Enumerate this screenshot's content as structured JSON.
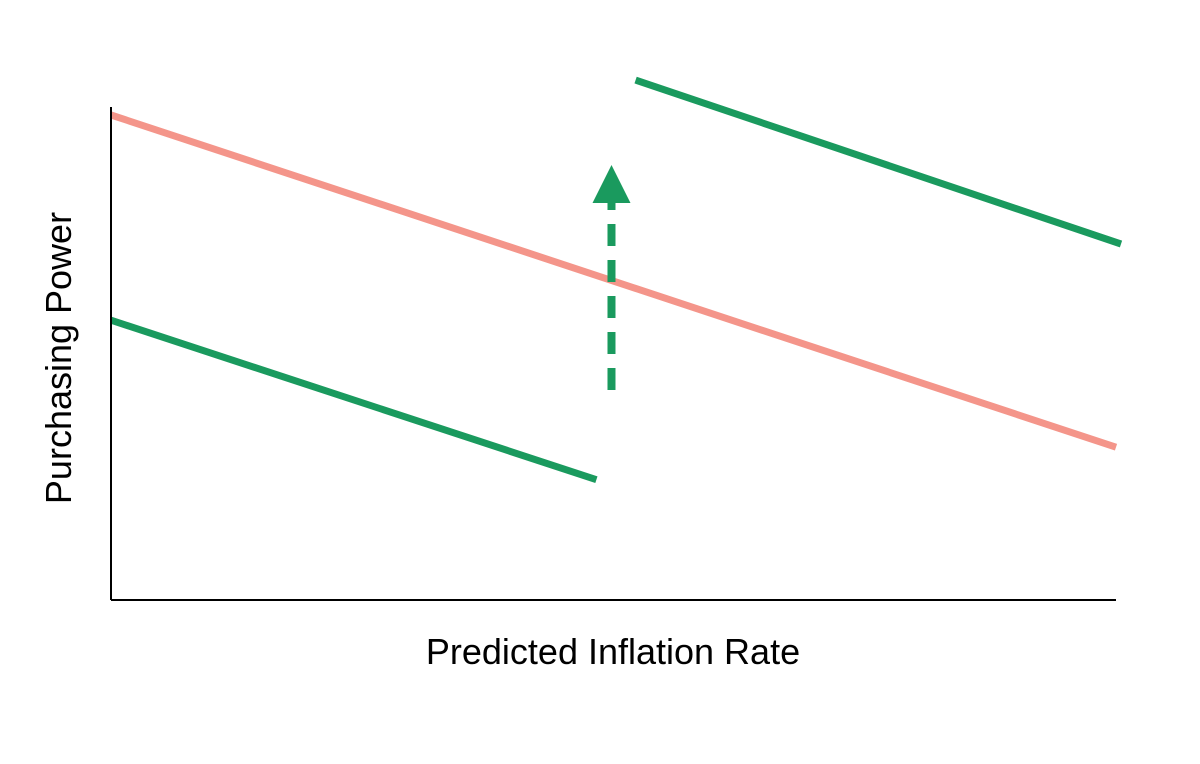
{
  "chart_data": {
    "type": "line",
    "title": "",
    "xlabel": "Predicted Inflation Rate",
    "ylabel": "Purchasing Power",
    "xlim": [
      0,
      100
    ],
    "ylim": [
      0,
      100
    ],
    "grid": false,
    "legend": "none",
    "show_tick_labels": false,
    "series": [
      {
        "role": "reference-line",
        "color": "#f4958a",
        "x": [
          0,
          100
        ],
        "y": [
          100,
          31.5
        ]
      },
      {
        "role": "shifted-line-lower",
        "color": "#1a9a5e",
        "x": [
          0,
          48.3
        ],
        "y": [
          57.7,
          24.8
        ]
      },
      {
        "role": "shifted-line-upper",
        "color": "#1a9a5e",
        "x": [
          52.2,
          100.5
        ],
        "y": [
          107.2,
          73.4
        ]
      }
    ],
    "annotations": [
      {
        "type": "dashed-arrow",
        "color": "#1a9a5e",
        "from": {
          "x": 49.8,
          "y": 43.3
        },
        "to": {
          "x": 49.8,
          "y": 89.7
        }
      }
    ]
  }
}
